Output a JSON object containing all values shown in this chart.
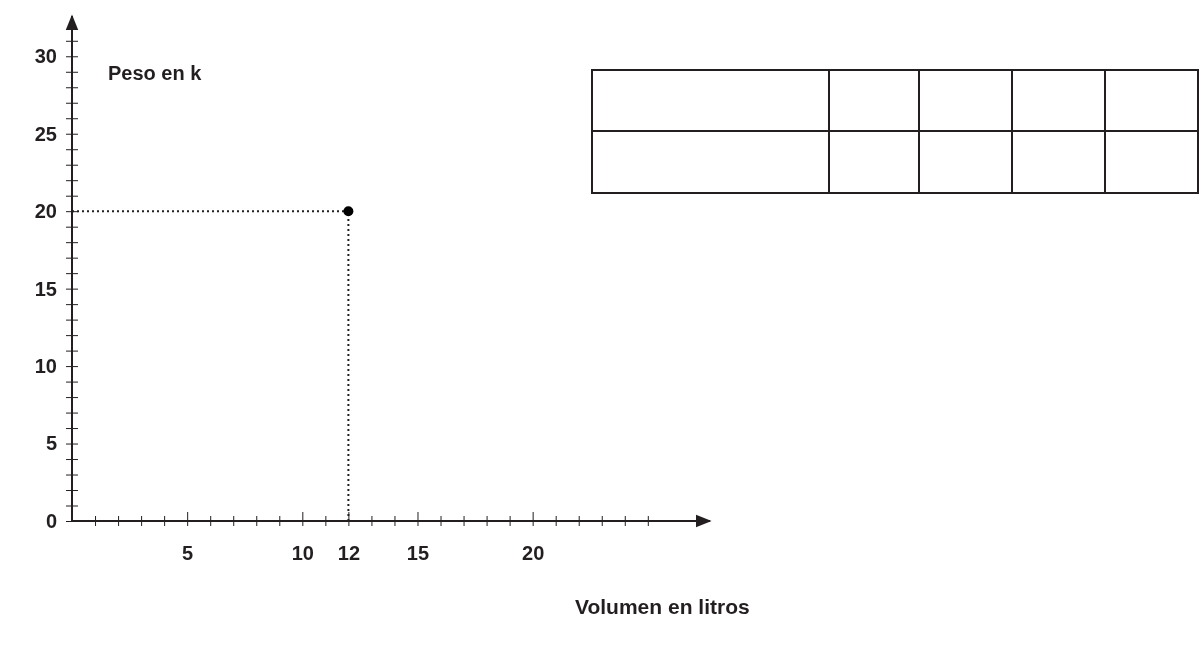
{
  "chart_data": {
    "type": "scatter",
    "xlabel": "Volumen en litros",
    "ylabel": "Peso en k",
    "x": [
      12
    ],
    "values": [
      20
    ],
    "color": "#000000",
    "marker": "circle",
    "xlim": [
      0,
      27.7
    ],
    "ylim": [
      0,
      32.6
    ],
    "xticks": [
      {
        "value": 1,
        "label": null
      },
      {
        "value": 2,
        "label": null
      },
      {
        "value": 3,
        "label": null
      },
      {
        "value": 4,
        "label": null
      },
      5,
      {
        "value": 6,
        "label": null
      },
      {
        "value": 7,
        "label": null
      },
      {
        "value": 8,
        "label": null
      },
      {
        "value": 9,
        "label": null
      },
      10,
      {
        "value": 11,
        "label": null
      },
      12,
      {
        "value": 13,
        "label": null
      },
      {
        "value": 14,
        "label": null
      },
      15,
      {
        "value": 16,
        "label": null
      },
      {
        "value": 17,
        "label": null
      },
      {
        "value": 18,
        "label": null
      },
      {
        "value": 19,
        "label": null
      },
      20,
      {
        "value": 21,
        "label": null
      },
      {
        "value": 22,
        "label": null
      },
      {
        "value": 23,
        "label": null
      },
      {
        "value": 24,
        "label": null
      },
      {
        "value": 25,
        "label": null
      }
    ],
    "yticks": [
      0,
      {
        "value": 1,
        "label": null
      },
      {
        "value": 2,
        "label": null
      },
      {
        "value": 3,
        "label": null
      },
      {
        "value": 4,
        "label": null
      },
      5,
      {
        "value": 6,
        "label": null
      },
      {
        "value": 7,
        "label": null
      },
      {
        "value": 8,
        "label": null
      },
      {
        "value": 9,
        "label": null
      },
      10,
      {
        "value": 11,
        "label": null
      },
      {
        "value": 12,
        "label": null
      },
      {
        "value": 13,
        "label": null
      },
      {
        "value": 14,
        "label": null
      },
      15,
      {
        "value": 16,
        "label": null
      },
      {
        "value": 17,
        "label": null
      },
      {
        "value": 18,
        "label": null
      },
      {
        "value": 19,
        "label": null
      },
      20,
      {
        "value": 21,
        "label": null
      },
      {
        "value": 22,
        "label": null
      },
      {
        "value": 23,
        "label": null
      },
      {
        "value": 24,
        "label": null
      },
      25,
      {
        "value": 26,
        "label": null
      },
      {
        "value": 27,
        "label": null
      },
      {
        "value": 28,
        "label": null
      },
      {
        "value": 29,
        "label": null
      },
      30,
      {
        "value": 31,
        "label": null
      }
    ],
    "ref_lines": [
      {
        "axis": "x",
        "value": 12,
        "line_style": "dotted"
      },
      {
        "axis": "y",
        "value": 20,
        "line_style": "dotted"
      }
    ],
    "grid": false
  }
}
